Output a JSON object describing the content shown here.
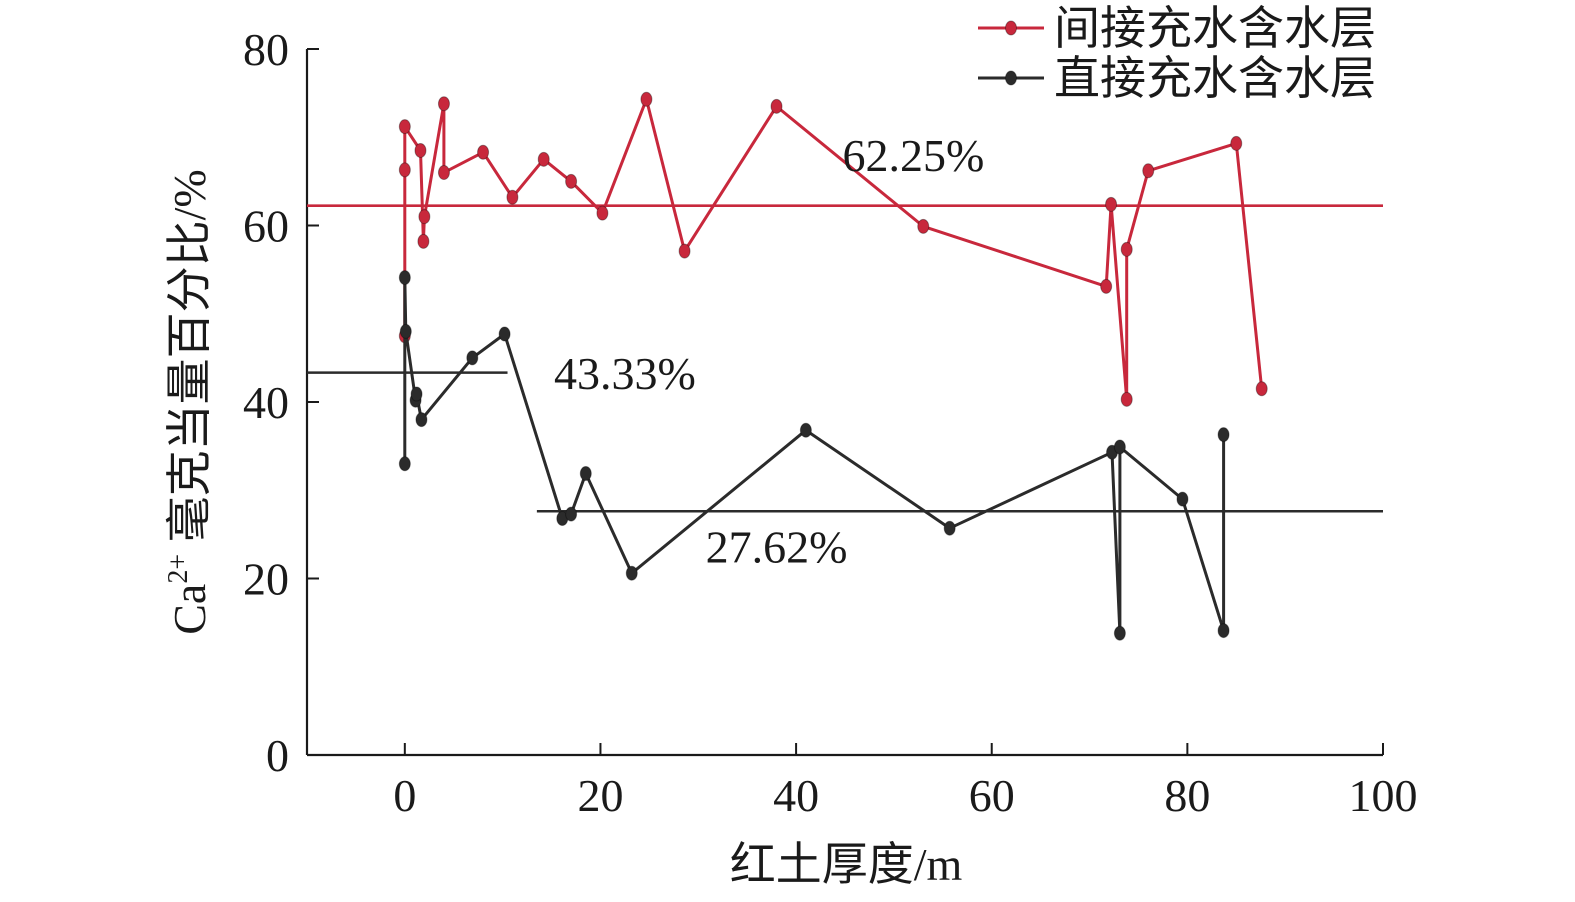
{
  "chart_data": {
    "type": "line",
    "xlabel": "红土厚度/m",
    "ylabel_main": "Ca",
    "ylabel_sup": "2+",
    "ylabel_rest": " 毫克当量百分比/%",
    "xlim": [
      -10,
      100
    ],
    "ylim": [
      0,
      80
    ],
    "xticks": [
      0,
      20,
      40,
      60,
      80,
      100
    ],
    "yticks": [
      0,
      20,
      40,
      60,
      80
    ],
    "legend_position": "top-right",
    "colors": {
      "indirect": "#c8283c",
      "direct": "#2b2b2b",
      "axis": "#1a1a1a"
    },
    "series": [
      {
        "name": "间接充水含水层",
        "color": "#c8283c",
        "points": [
          [
            0,
            47.5
          ],
          [
            0,
            66.3
          ],
          [
            0,
            71.2
          ],
          [
            1.6,
            68.5
          ],
          [
            1.9,
            58.2
          ],
          [
            2.0,
            61.0
          ],
          [
            4.0,
            73.8
          ],
          [
            4.0,
            66.0
          ],
          [
            8.0,
            68.3
          ],
          [
            11.0,
            63.2
          ],
          [
            14.2,
            67.5
          ],
          [
            17.0,
            65.0
          ],
          [
            20.2,
            61.4
          ],
          [
            24.7,
            74.3
          ],
          [
            28.6,
            57.1
          ],
          [
            38.0,
            73.5
          ],
          [
            53.0,
            59.9
          ],
          [
            71.7,
            53.1
          ],
          [
            72.2,
            62.4
          ],
          [
            73.8,
            40.3
          ],
          [
            73.8,
            57.3
          ],
          [
            76.0,
            66.2
          ],
          [
            85.0,
            69.3
          ],
          [
            87.6,
            41.5
          ]
        ]
      },
      {
        "name": "直接充水含水层",
        "color": "#2b2b2b",
        "points": [
          [
            0,
            33.0
          ],
          [
            0,
            54.1
          ],
          [
            0.1,
            48.0
          ],
          [
            1.1,
            40.2
          ],
          [
            1.2,
            40.9
          ],
          [
            1.7,
            38.0
          ],
          [
            6.9,
            45.0
          ],
          [
            10.2,
            47.7
          ],
          [
            16.1,
            26.8
          ],
          [
            17.0,
            27.3
          ],
          [
            18.5,
            31.9
          ],
          [
            23.2,
            20.6
          ],
          [
            41.0,
            36.8
          ],
          [
            55.7,
            25.7
          ],
          [
            72.3,
            34.3
          ],
          [
            73.1,
            13.8
          ],
          [
            73.1,
            34.9
          ],
          [
            79.5,
            29.0
          ],
          [
            83.7,
            14.1
          ],
          [
            83.7,
            36.3
          ]
        ]
      }
    ],
    "mean_lines": [
      {
        "series": "间接充水含水层",
        "value": 62.25,
        "x_range": [
          -10,
          100
        ],
        "label": "62.25%",
        "label_x": 52,
        "label_y": 68
      },
      {
        "series": "直接充水含水层",
        "value": 43.33,
        "x_range": [
          -10,
          10.5
        ],
        "label": "43.33%",
        "label_x": 22.5,
        "label_y": 43.3
      },
      {
        "series": "直接充水含水层",
        "value": 27.62,
        "x_range": [
          13.5,
          100
        ],
        "label": "27.62%",
        "label_x": 38,
        "label_y": 23.6
      }
    ]
  }
}
